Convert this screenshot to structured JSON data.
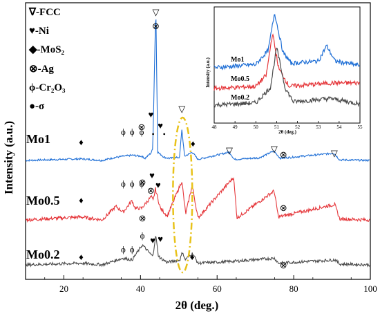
{
  "chart_data": {
    "type": "line",
    "xlabel": "2θ (deg.)",
    "ylabel": "Intensity (a.u.)",
    "xlim": [
      10,
      100
    ],
    "xticks": [
      "20",
      "40",
      "60",
      "80",
      "100"
    ],
    "series": [
      {
        "name": "Mo1",
        "color": "#1f6fd6",
        "points": [
          [
            10,
            0
          ],
          [
            24.5,
            0.3
          ],
          [
            30,
            0
          ],
          [
            33.5,
            0.6
          ],
          [
            35.5,
            0.8
          ],
          [
            37.8,
            1.0
          ],
          [
            40.3,
            0.8
          ],
          [
            41.2,
            0.4
          ],
          [
            42.7,
            1.4
          ],
          [
            43.2,
            2.2
          ],
          [
            44.0,
            30
          ],
          [
            44.5,
            1.6
          ],
          [
            45.2,
            1.2
          ],
          [
            46.2,
            0.6
          ],
          [
            47.5,
            0.4
          ],
          [
            50.2,
            0.6
          ],
          [
            50.8,
            6.0
          ],
          [
            51.5,
            0.8
          ],
          [
            53.5,
            1.6
          ],
          [
            55,
            0.2
          ],
          [
            63.2,
            1.6
          ],
          [
            64.5,
            0.2
          ],
          [
            71.0,
            0.5
          ],
          [
            74.8,
            1.8
          ],
          [
            76.5,
            0.4
          ],
          [
            90.5,
            1.4
          ],
          [
            92,
            0.1
          ],
          [
            100,
            0
          ]
        ],
        "markers_annotated": [
          "▽ 44.0",
          "⊗ 44.0",
          "♥ 42.7",
          "♥ 45.2",
          "ϕ 35.5",
          "ϕ 37.8",
          "ϕ 40.3",
          "⊗ 40.3",
          "● 43.3",
          "● 46.2",
          "▽ 50.8",
          "◆ 24.5",
          "◆ 53.7",
          "▽ 63.2",
          "▽ 74.9",
          "⊗ 77.3",
          "▽ 90.6"
        ]
      },
      {
        "name": "Mo0.5",
        "color": "#e5363a",
        "points": [
          [
            10,
            0
          ],
          [
            24.5,
            0.3
          ],
          [
            30,
            0
          ],
          [
            33.6,
            1.4
          ],
          [
            35.5,
            0.8
          ],
          [
            37.8,
            2.0
          ],
          [
            38.6,
            1.2
          ],
          [
            40.3,
            1.2
          ],
          [
            42.8,
            2.4
          ],
          [
            43.3,
            2.0
          ],
          [
            43.9,
            3.2
          ],
          [
            44.4,
            2.4
          ],
          [
            45.2,
            1.2
          ],
          [
            47,
            0.4
          ],
          [
            50.8,
            4.0
          ],
          [
            51.8,
            0.6
          ],
          [
            53.5,
            3.6
          ],
          [
            55,
            0.2
          ],
          [
            64.3,
            4.4
          ],
          [
            65.2,
            0.2
          ],
          [
            74.9,
            3.0
          ],
          [
            76,
            0.3
          ],
          [
            90.7,
            1.6
          ],
          [
            92,
            0.1
          ],
          [
            100,
            0
          ]
        ],
        "markers_annotated": [
          "◆ 24.5",
          "ϕ 35.5",
          "ϕ 37.8",
          "ϕ 40.3",
          "⊗ 40.5",
          "⊗ 42.7",
          "♥ 43.0",
          "♥ 44.6",
          "⊗ 77.3"
        ]
      },
      {
        "name": "Mo0.2",
        "color": "#4a4a4a",
        "points": [
          [
            10,
            0
          ],
          [
            24.5,
            0.2
          ],
          [
            30,
            0
          ],
          [
            35.4,
            0.8
          ],
          [
            37.8,
            0.6
          ],
          [
            40.5,
            2.4
          ],
          [
            43.2,
            1.0
          ],
          [
            44.0,
            3.6
          ],
          [
            44.6,
            1.2
          ],
          [
            45.2,
            0.8
          ],
          [
            47,
            0.3
          ],
          [
            50.3,
            0.6
          ],
          [
            51.0,
            1.6
          ],
          [
            51.6,
            0.6
          ],
          [
            53.6,
            1.4
          ],
          [
            55,
            0.2
          ],
          [
            63.5,
            0.4
          ],
          [
            75.0,
            0.8
          ],
          [
            76,
            0.2
          ],
          [
            90.9,
            0.6
          ],
          [
            92,
            0.1
          ],
          [
            100,
            0
          ]
        ],
        "markers_annotated": [
          "◆ 24.5",
          "ϕ 35.5",
          "ϕ 37.8",
          "ϕ 40.5",
          "⊗ 40.5",
          "♥ 43.2",
          "♥ 45.2",
          "◆ 53.5",
          "⊗ 77.3"
        ]
      }
    ],
    "legend": [
      "∇-FCC",
      "♥-Ni",
      "◆-MoS₂",
      "⊗-Ag",
      "ϕ-Cr₂O₃",
      "●-σ"
    ],
    "inset": {
      "xlabel": "2θ (deg.)",
      "ylabel": "Intensity (a.u.)",
      "xlim": [
        48,
        55
      ],
      "xticks": [
        "48",
        "49",
        "50",
        "51",
        "52",
        "53",
        "54",
        "55"
      ],
      "series": [
        {
          "name": "Mo1",
          "color": "#1f6fd6",
          "points": [
            [
              48,
              0
            ],
            [
              50,
              0.3
            ],
            [
              50.6,
              1.6
            ],
            [
              50.9,
              5.0
            ],
            [
              51.3,
              1.4
            ],
            [
              51.7,
              0.4
            ],
            [
              53.0,
              0.6
            ],
            [
              53.4,
              2.0
            ],
            [
              53.8,
              0.6
            ],
            [
              55,
              0.2
            ]
          ]
        },
        {
          "name": "Mo0.5",
          "color": "#e5363a",
          "points": [
            [
              48,
              0
            ],
            [
              50,
              0.2
            ],
            [
              50.5,
              1.2
            ],
            [
              50.8,
              5.0
            ],
            [
              51.1,
              1.8
            ],
            [
              51.6,
              0.2
            ],
            [
              53.6,
              0.5
            ],
            [
              55,
              0.5
            ]
          ]
        },
        {
          "name": "Mo0.2",
          "color": "#4a4a4a",
          "points": [
            [
              48,
              0
            ],
            [
              50,
              0.2
            ],
            [
              50.7,
              1.6
            ],
            [
              51.0,
              5.2
            ],
            [
              51.4,
              1.6
            ],
            [
              51.8,
              0.3
            ],
            [
              53.6,
              0.6
            ],
            [
              55,
              0.1
            ]
          ]
        }
      ]
    },
    "highlight": {
      "x_center": 51.0,
      "color": "#e8c21a"
    }
  }
}
